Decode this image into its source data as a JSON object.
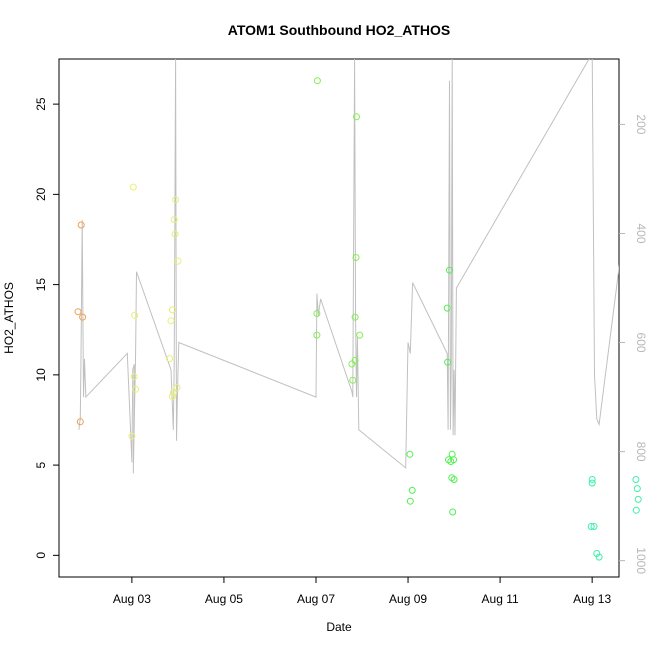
{
  "chart_data": {
    "type": "scatter",
    "title": "ATOM1 Southbound HO2_ATHOS",
    "xlabel": "Date",
    "ylabel": "HO2_ATHOS",
    "xlim": [
      "2016-08-01T10:00",
      "2016-08-13T14:00"
    ],
    "ylim": [
      -1.2,
      27.5
    ],
    "x_ticks": [
      {
        "label": "Aug 03",
        "day": 2
      },
      {
        "label": "Aug 05",
        "day": 4
      },
      {
        "label": "Aug 07",
        "day": 6
      },
      {
        "label": "Aug 09",
        "day": 8
      },
      {
        "label": "Aug 11",
        "day": 10
      },
      {
        "label": "Aug 13",
        "day": 12
      }
    ],
    "y_ticks": [
      0,
      5,
      10,
      15,
      20,
      25
    ],
    "right_axis": {
      "ticks": [
        200,
        400,
        600,
        800,
        1000
      ],
      "ylim_reversed": [
        1030,
        80
      ],
      "color": "#b8b8b8"
    },
    "points": [
      {
        "day": 0.83,
        "y": 13.5,
        "color": "#f0a050"
      },
      {
        "day": 0.9,
        "y": 18.3,
        "color": "#f0a050"
      },
      {
        "day": 0.93,
        "y": 13.2,
        "color": "#f0a050"
      },
      {
        "day": 0.88,
        "y": 7.4,
        "color": "#f0a050"
      },
      {
        "day": 2.03,
        "y": 20.4,
        "color": "#e8f070"
      },
      {
        "day": 2.06,
        "y": 13.3,
        "color": "#e8f070"
      },
      {
        "day": 2.05,
        "y": 9.9,
        "color": "#e8f070"
      },
      {
        "day": 2.08,
        "y": 9.2,
        "color": "#e8f070"
      },
      {
        "day": 2.0,
        "y": 6.6,
        "color": "#e8f070"
      },
      {
        "day": 2.95,
        "y": 19.7,
        "color": "#e8f070"
      },
      {
        "day": 2.92,
        "y": 18.6,
        "color": "#e8f070"
      },
      {
        "day": 2.94,
        "y": 17.8,
        "color": "#e8f070"
      },
      {
        "day": 3.0,
        "y": 16.3,
        "color": "#e8f070"
      },
      {
        "day": 2.88,
        "y": 13.6,
        "color": "#e8f070"
      },
      {
        "day": 2.85,
        "y": 13.0,
        "color": "#e8f070"
      },
      {
        "day": 2.82,
        "y": 10.9,
        "color": "#e8f070"
      },
      {
        "day": 2.98,
        "y": 9.3,
        "color": "#e8f070"
      },
      {
        "day": 2.9,
        "y": 9.0,
        "color": "#e8f070"
      },
      {
        "day": 2.88,
        "y": 8.8,
        "color": "#e8f070"
      },
      {
        "day": 6.03,
        "y": 26.3,
        "color": "#80f050"
      },
      {
        "day": 6.88,
        "y": 24.3,
        "color": "#80f050"
      },
      {
        "day": 6.02,
        "y": 13.4,
        "color": "#80f050"
      },
      {
        "day": 6.02,
        "y": 12.2,
        "color": "#80f050"
      },
      {
        "day": 6.87,
        "y": 16.5,
        "color": "#80f050"
      },
      {
        "day": 6.85,
        "y": 13.2,
        "color": "#80f050"
      },
      {
        "day": 6.95,
        "y": 12.2,
        "color": "#80f050"
      },
      {
        "day": 6.85,
        "y": 10.8,
        "color": "#80f050"
      },
      {
        "day": 6.78,
        "y": 10.6,
        "color": "#80f050"
      },
      {
        "day": 6.8,
        "y": 9.7,
        "color": "#80f050"
      },
      {
        "day": 8.04,
        "y": 5.6,
        "color": "#50f050"
      },
      {
        "day": 8.09,
        "y": 3.6,
        "color": "#50f050"
      },
      {
        "day": 8.05,
        "y": 3.0,
        "color": "#50f050"
      },
      {
        "day": 8.9,
        "y": 15.8,
        "color": "#50f050"
      },
      {
        "day": 8.85,
        "y": 13.7,
        "color": "#50f050"
      },
      {
        "day": 8.86,
        "y": 10.7,
        "color": "#50f050"
      },
      {
        "day": 8.96,
        "y": 5.6,
        "color": "#50f050"
      },
      {
        "day": 8.88,
        "y": 5.3,
        "color": "#50f050"
      },
      {
        "day": 8.93,
        "y": 5.2,
        "color": "#50f050"
      },
      {
        "day": 8.99,
        "y": 5.3,
        "color": "#50f050"
      },
      {
        "day": 8.95,
        "y": 4.3,
        "color": "#50f050"
      },
      {
        "day": 9.0,
        "y": 4.2,
        "color": "#50f050"
      },
      {
        "day": 8.97,
        "y": 2.4,
        "color": "#50f050"
      },
      {
        "day": 12.0,
        "y": 4.2,
        "color": "#40f0a8"
      },
      {
        "day": 12.0,
        "y": 4.0,
        "color": "#40f0a8"
      },
      {
        "day": 11.98,
        "y": 1.6,
        "color": "#40f0a8"
      },
      {
        "day": 12.04,
        "y": 1.6,
        "color": "#40f0a8"
      },
      {
        "day": 12.1,
        "y": 0.1,
        "color": "#40f0a8"
      },
      {
        "day": 12.15,
        "y": -0.1,
        "color": "#40f0a8"
      },
      {
        "day": 12.95,
        "y": 4.2,
        "color": "#40f0a8"
      },
      {
        "day": 12.98,
        "y": 3.7,
        "color": "#40f0a8"
      },
      {
        "day": 13.0,
        "y": 3.1,
        "color": "#40f0a8"
      },
      {
        "day": 12.96,
        "y": 2.5,
        "color": "#40f0a8"
      }
    ],
    "line_series": {
      "axis": "right",
      "color": "#c0c0c0",
      "points": [
        [
          0.85,
          760
        ],
        [
          0.88,
          738
        ],
        [
          0.9,
          590
        ],
        [
          0.92,
          375
        ],
        [
          0.95,
          700
        ],
        [
          0.97,
          630
        ],
        [
          1.0,
          700
        ],
        [
          1.9,
          620
        ],
        [
          2.0,
          820
        ],
        [
          2.02,
          650
        ],
        [
          2.05,
          640
        ],
        [
          2.03,
          840
        ],
        [
          2.08,
          620
        ],
        [
          2.1,
          470
        ],
        [
          2.85,
          650
        ],
        [
          2.9,
          760
        ],
        [
          2.92,
          640
        ],
        [
          2.95,
          80
        ],
        [
          2.97,
          780
        ],
        [
          3.0,
          660
        ],
        [
          3.02,
          600
        ],
        [
          6.0,
          700
        ],
        [
          6.02,
          510
        ],
        [
          6.05,
          550
        ],
        [
          6.1,
          520
        ],
        [
          6.78,
          690
        ],
        [
          6.8,
          700
        ],
        [
          6.84,
          80
        ],
        [
          6.86,
          560
        ],
        [
          6.88,
          700
        ],
        [
          6.9,
          590
        ],
        [
          6.93,
          760
        ],
        [
          7.95,
          830
        ],
        [
          8.0,
          600
        ],
        [
          8.05,
          620
        ],
        [
          8.1,
          490
        ],
        [
          8.85,
          620
        ],
        [
          8.87,
          760
        ],
        [
          8.9,
          120
        ],
        [
          8.92,
          760
        ],
        [
          8.94,
          640
        ],
        [
          8.96,
          80
        ],
        [
          8.98,
          770
        ],
        [
          9.0,
          650
        ],
        [
          9.02,
          770
        ],
        [
          9.05,
          500
        ],
        [
          12.0,
          70
        ],
        [
          12.05,
          660
        ],
        [
          12.1,
          740
        ],
        [
          12.15,
          750
        ],
        [
          12.95,
          220
        ],
        [
          13.0,
          690
        ]
      ]
    }
  }
}
